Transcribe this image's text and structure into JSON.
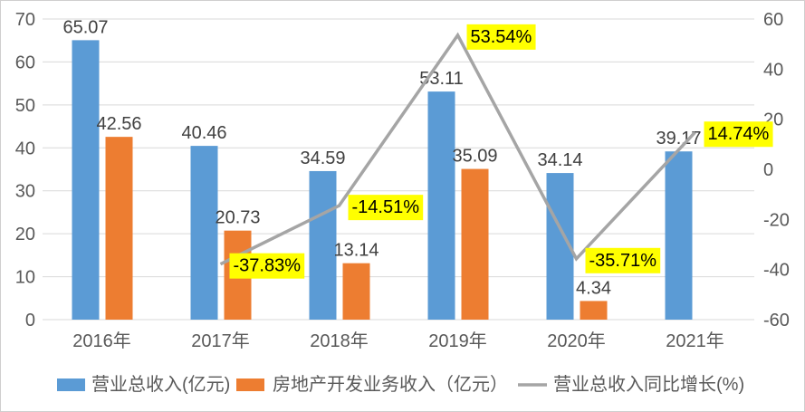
{
  "chart_theme": {
    "background": "#FFFFFF",
    "border_color": "#D0CECE",
    "gridline_color": "#D9D9D9",
    "axis_text_color": "#595959",
    "data_label_color": "#404040",
    "highlight_bg": "#FFFF00"
  },
  "chart_data": {
    "type": "combo",
    "title": "",
    "grid": true,
    "legend_position": "bottom",
    "categories": [
      "2016年",
      "2017年",
      "2018年",
      "2019年",
      "2020年",
      "2021年"
    ],
    "left_axis": {
      "label": "",
      "min": 0,
      "max": 70,
      "step": 10,
      "ticks": [
        "0",
        "10",
        "20",
        "30",
        "40",
        "50",
        "60",
        "70"
      ]
    },
    "right_axis": {
      "label": "",
      "min": -60,
      "max": 60,
      "step": 20,
      "ticks": [
        "-60",
        "-40",
        "-20",
        "0",
        "20",
        "40",
        "60"
      ]
    },
    "series": [
      {
        "name": "营业总收入(亿元)",
        "type": "bar",
        "axis": "left",
        "color": "#5B9BD5",
        "values": [
          65.07,
          40.46,
          34.59,
          53.11,
          34.14,
          39.17
        ],
        "labels": [
          "65.07",
          "40.46",
          "34.59",
          "53.11",
          "34.14",
          "39.17"
        ]
      },
      {
        "name": "房地产开发业务收入（亿元）",
        "type": "bar",
        "axis": "left",
        "color": "#ED7D31",
        "values": [
          42.56,
          20.73,
          13.14,
          35.09,
          4.34,
          null
        ],
        "labels": [
          "42.56",
          "20.73",
          "13.14",
          "35.09",
          "4.34",
          null
        ]
      },
      {
        "name": "营业总收入同比增长(%)",
        "type": "line",
        "axis": "right",
        "color": "#A5A5A5",
        "label_bg": "#FFFF00",
        "values": [
          null,
          -37.83,
          -14.51,
          53.54,
          -35.71,
          14.74
        ],
        "labels": [
          null,
          "-37.83%",
          "-14.51%",
          "53.54%",
          "-35.71%",
          "14.74%"
        ]
      }
    ]
  }
}
